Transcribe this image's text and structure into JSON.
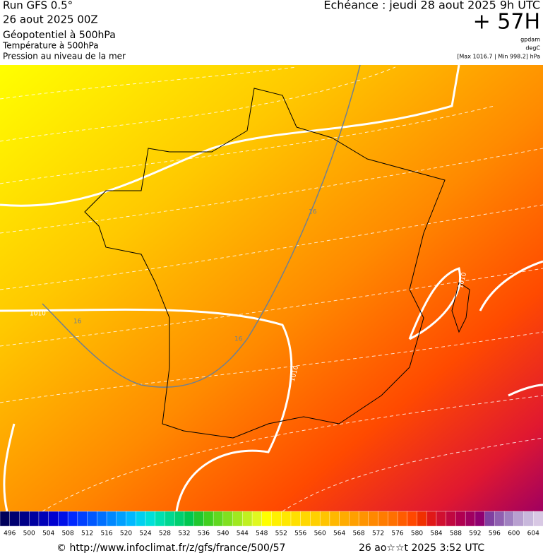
{
  "header": {
    "run": "Run GFS 0.5°",
    "date": "26 aout 2025 00Z",
    "layer1": "Géopotentiel à 500hPa",
    "layer2": "Température à 500hPa",
    "layer3": "Pression au niveau de la mer",
    "echeance": "Echéance : jeudi 28 aout 2025 9h UTC",
    "offset": "+ 57H",
    "unit1": "gpdam",
    "unit2": "degC",
    "pressure_range": "[Max 1016.7 | Min 998.2] hPa"
  },
  "map": {
    "isobar_labels": [
      "1010",
      "1010",
      "1010"
    ],
    "isotherm_labels": [
      "16",
      "16",
      "16"
    ]
  },
  "colorbar": {
    "labels": [
      496,
      500,
      504,
      508,
      512,
      516,
      520,
      524,
      528,
      532,
      536,
      540,
      544,
      548,
      552,
      556,
      560,
      564,
      568,
      572,
      576,
      580,
      584,
      588,
      592,
      596,
      600,
      604
    ],
    "colors": [
      "#00005a",
      "#000070",
      "#000088",
      "#0000a0",
      "#0000b8",
      "#0000d0",
      "#0010e8",
      "#0028ff",
      "#0040ff",
      "#0058ff",
      "#0070ff",
      "#0088ff",
      "#00a0ff",
      "#00b8ff",
      "#00d0f0",
      "#00e0d8",
      "#00e0b0",
      "#00d890",
      "#00d070",
      "#00c850",
      "#20c830",
      "#40d020",
      "#60d820",
      "#80e020",
      "#a0e820",
      "#c0f020",
      "#e0f820",
      "#ffff00",
      "#fff000",
      "#ffe800",
      "#ffe000",
      "#ffd800",
      "#ffd000",
      "#ffc400",
      "#ffb800",
      "#ffac00",
      "#ffa000",
      "#ff9400",
      "#ff8800",
      "#ff7c00",
      "#ff7000",
      "#ff5c00",
      "#ff4800",
      "#f03000",
      "#e01818",
      "#d01030",
      "#c00840",
      "#b00050",
      "#a00060",
      "#900070",
      "#8040a0",
      "#9060b0",
      "#a080c0",
      "#b8a0d0",
      "#c8b8dc",
      "#d8c8e4"
    ]
  },
  "footer": {
    "url": "© http://www.infoclimat.fr/z/gfs/france/500/57",
    "timestamp": "26 ao☆☆t 2025  3:52 UTC"
  }
}
